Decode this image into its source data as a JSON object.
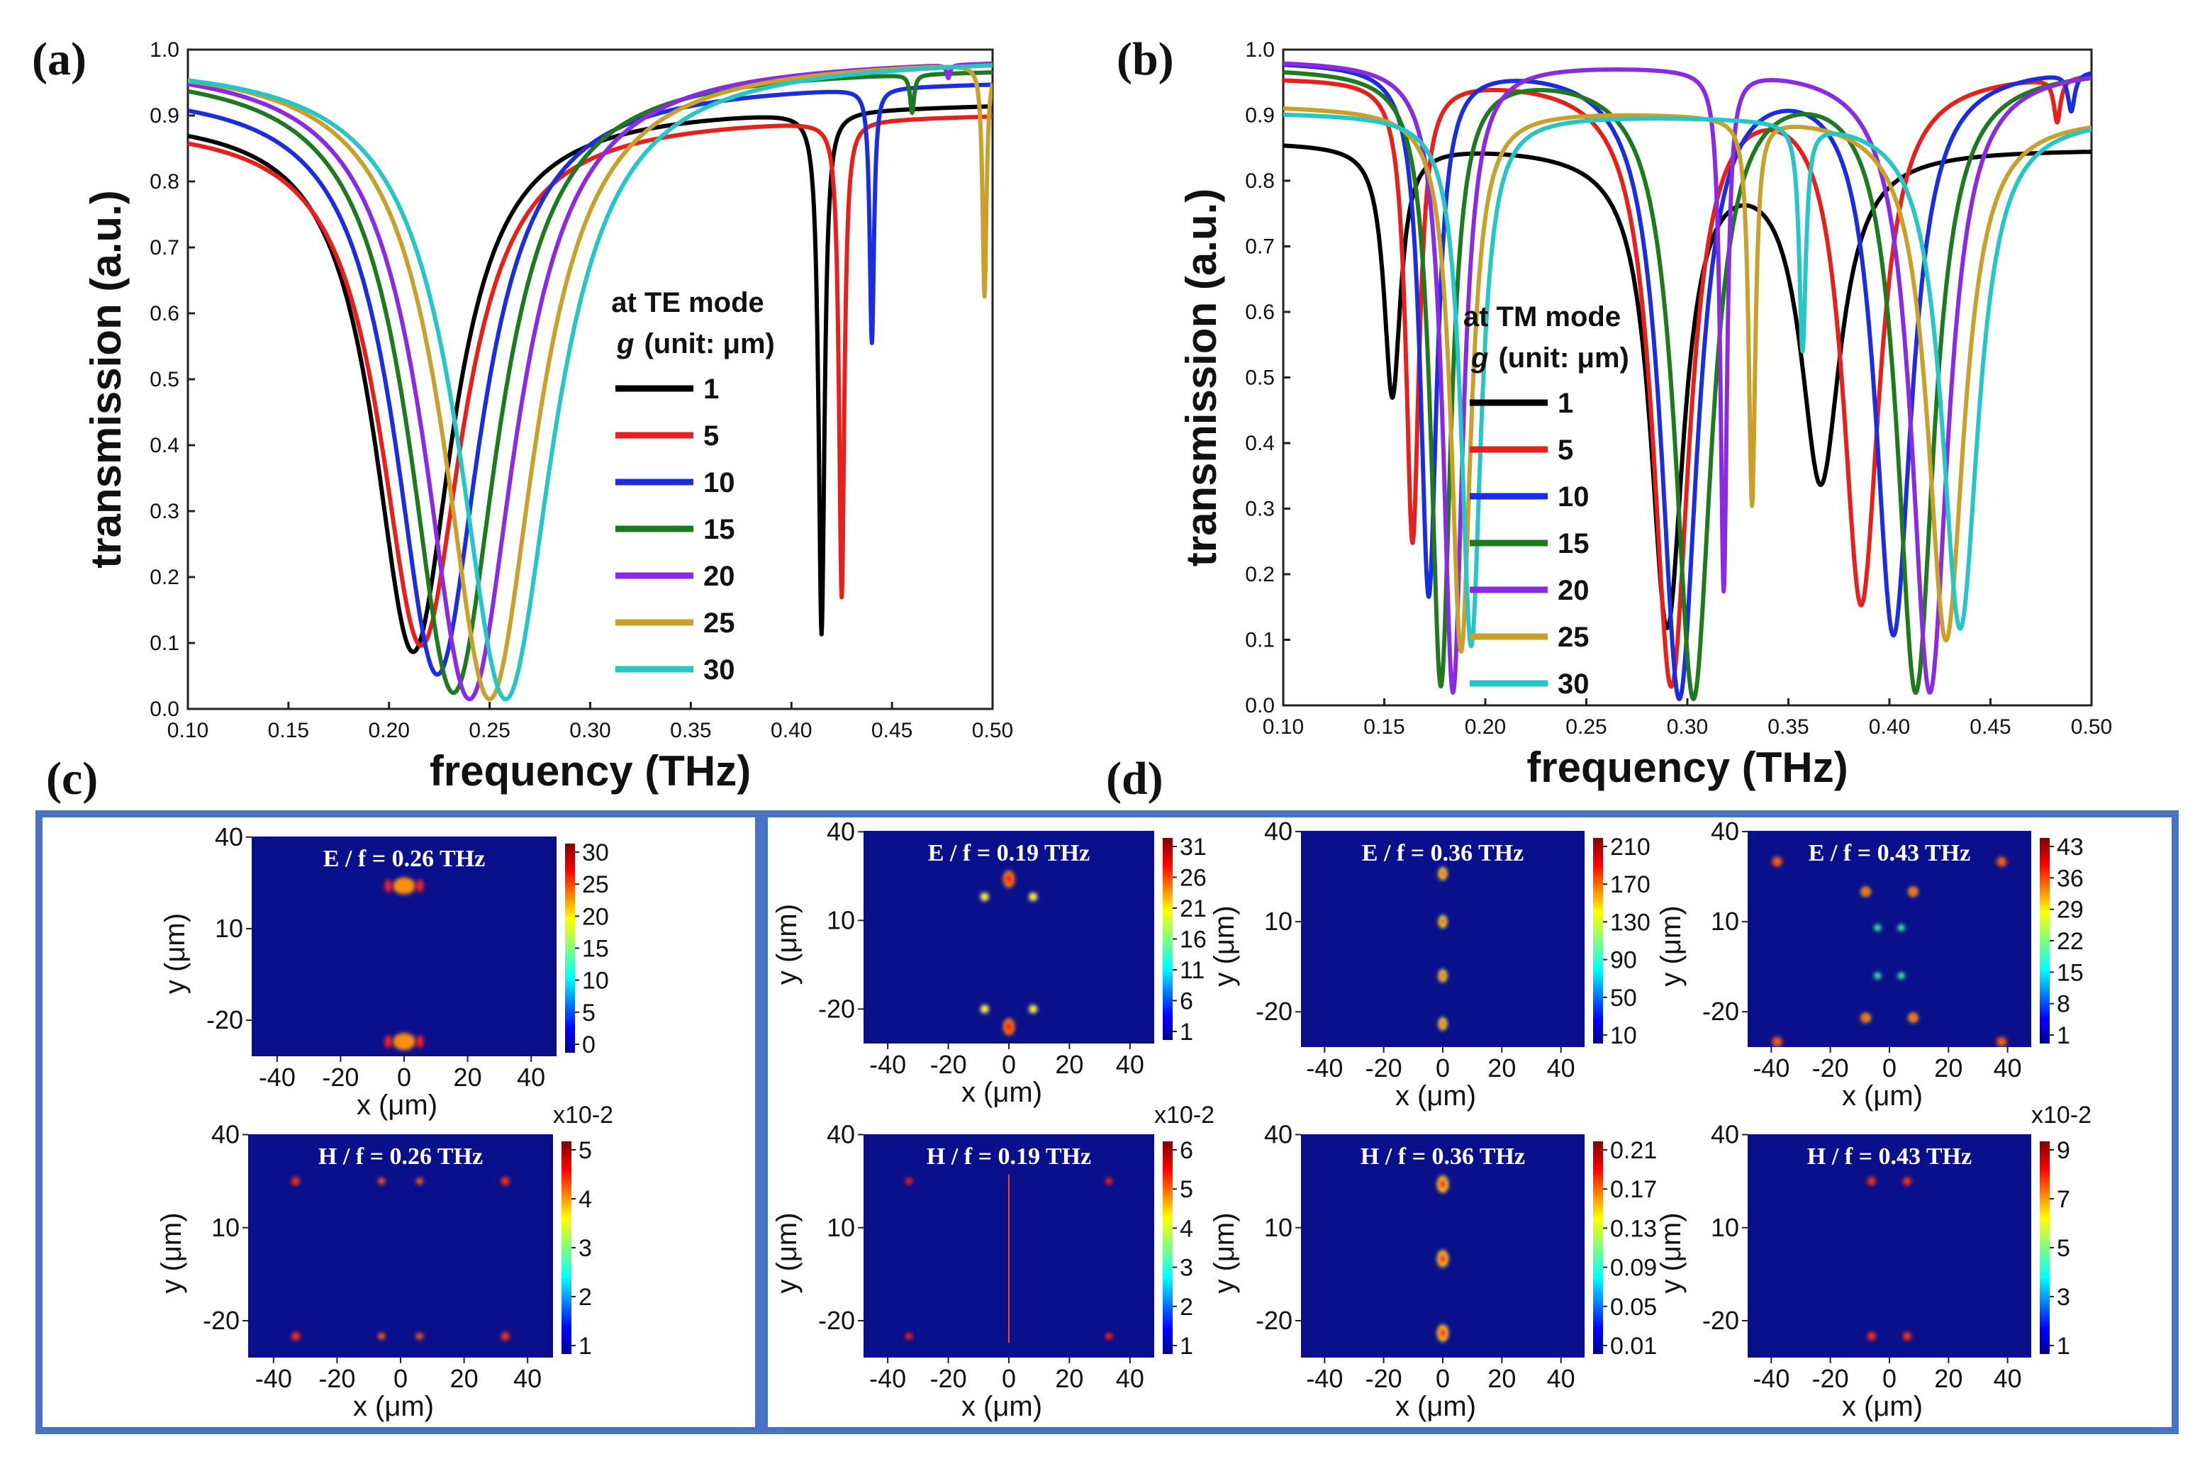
{
  "chart_data": [
    {
      "type": "line",
      "panel_label": "(a)",
      "xlabel": "frequency (THz)",
      "ylabel": "transmission (a.u.)",
      "xlim": [
        0.1,
        0.5
      ],
      "ylim": [
        0.0,
        1.0
      ],
      "x_ticks": [
        "0.10",
        "0.15",
        "0.20",
        "0.25",
        "0.30",
        "0.35",
        "0.40",
        "0.45",
        "0.50"
      ],
      "y_ticks": [
        "0.0",
        "0.1",
        "0.2",
        "0.3",
        "0.4",
        "0.5",
        "0.6",
        "0.7",
        "0.8",
        "0.9",
        "1.0"
      ],
      "legend_title_1": "at TE mode",
      "legend_title_2_var": "g",
      "legend_title_2_unit": "(unit: μm)",
      "legend_placement": "center-right",
      "series": [
        {
          "name": "1",
          "color": "#000000",
          "base_start": 0.905,
          "base_end": 0.92,
          "dips": [
            {
              "f": 0.212,
              "depth": 0.905,
              "w": 0.024
            },
            {
              "f": 0.415,
              "depth": 0.875,
              "w": 0.0018
            }
          ]
        },
        {
          "name": "5",
          "color": "#e8201c",
          "base_start": 0.893,
          "base_end": 0.905,
          "dips": [
            {
              "f": 0.216,
              "depth": 0.893,
              "w": 0.025
            },
            {
              "f": 0.425,
              "depth": 0.81,
              "w": 0.0016
            }
          ]
        },
        {
          "name": "10",
          "color": "#1a2ee0",
          "base_start": 0.945,
          "base_end": 0.955,
          "dips": [
            {
              "f": 0.224,
              "depth": 0.945,
              "w": 0.026
            },
            {
              "f": 0.44,
              "depth": 0.41,
              "w": 0.0013
            }
          ]
        },
        {
          "name": "15",
          "color": "#1f7a1f",
          "base_start": 0.975,
          "base_end": 0.975,
          "dips": [
            {
              "f": 0.232,
              "depth": 0.975,
              "w": 0.027
            },
            {
              "f": 0.46,
              "depth": 0.06,
              "w": 0.0012
            }
          ]
        },
        {
          "name": "20",
          "color": "#8a2be2",
          "base_start": 0.985,
          "base_end": 0.99,
          "dips": [
            {
              "f": 0.24,
              "depth": 0.985,
              "w": 0.028
            },
            {
              "f": 0.478,
              "depth": 0.02,
              "w": 0.001
            }
          ]
        },
        {
          "name": "25",
          "color": "#c8a02a",
          "base_start": 0.985,
          "base_end": 0.99,
          "dips": [
            {
              "f": 0.25,
              "depth": 0.985,
              "w": 0.028
            },
            {
              "f": 0.496,
              "depth": 0.36,
              "w": 0.0012
            }
          ]
        },
        {
          "name": "30",
          "color": "#26c6c6",
          "base_start": 0.985,
          "base_end": 0.99,
          "dips": [
            {
              "f": 0.258,
              "depth": 0.985,
              "w": 0.029
            }
          ]
        }
      ]
    },
    {
      "type": "line",
      "panel_label": "(b)",
      "xlabel": "frequency (THz)",
      "ylabel": "transmission (a.u.)",
      "xlim": [
        0.1,
        0.5
      ],
      "ylim": [
        0.0,
        1.0
      ],
      "x_ticks": [
        "0.10",
        "0.15",
        "0.20",
        "0.25",
        "0.30",
        "0.35",
        "0.40",
        "0.45",
        "0.50"
      ],
      "y_ticks": [
        "0.0",
        "0.1",
        "0.2",
        "0.3",
        "0.4",
        "0.5",
        "0.6",
        "0.7",
        "0.8",
        "0.9",
        "1.0"
      ],
      "legend_title_1": "at TM mode",
      "legend_title_2_var": "g",
      "legend_title_2_unit": "(unit: μm)",
      "legend_placement": "center-left",
      "series": [
        {
          "name": "1",
          "color": "#000000",
          "base_start": 0.86,
          "base_end": 0.85,
          "dips": [
            {
              "f": 0.154,
              "depth": 0.45,
              "w": 0.005
            },
            {
              "f": 0.29,
              "depth": 0.86,
              "w": 0.01
            },
            {
              "f": 0.366,
              "depth": 0.6,
              "w": 0.012
            }
          ]
        },
        {
          "name": "5",
          "color": "#e8201c",
          "base_start": 0.96,
          "base_end": 0.97,
          "dips": [
            {
              "f": 0.164,
              "depth": 0.74,
              "w": 0.004
            },
            {
              "f": 0.292,
              "depth": 0.97,
              "w": 0.011
            },
            {
              "f": 0.386,
              "depth": 0.84,
              "w": 0.011
            },
            {
              "f": 0.483,
              "depth": 0.07,
              "w": 0.002
            }
          ]
        },
        {
          "name": "10",
          "color": "#1a2ee0",
          "base_start": 0.985,
          "base_end": 0.98,
          "dips": [
            {
              "f": 0.172,
              "depth": 0.83,
              "w": 0.005
            },
            {
              "f": 0.296,
              "depth": 0.99,
              "w": 0.011
            },
            {
              "f": 0.402,
              "depth": 0.89,
              "w": 0.011
            },
            {
              "f": 0.49,
              "depth": 0.06,
              "w": 0.002
            }
          ]
        },
        {
          "name": "15",
          "color": "#1f7a1f",
          "base_start": 0.975,
          "base_end": 0.975,
          "dips": [
            {
              "f": 0.178,
              "depth": 0.97,
              "w": 0.006
            },
            {
              "f": 0.303,
              "depth": 0.99,
              "w": 0.011
            },
            {
              "f": 0.413,
              "depth": 0.98,
              "w": 0.011
            }
          ]
        },
        {
          "name": "20",
          "color": "#8a2be2",
          "base_start": 0.985,
          "base_end": 0.975,
          "dips": [
            {
              "f": 0.184,
              "depth": 0.98,
              "w": 0.006
            },
            {
              "f": 0.318,
              "depth": 0.82,
              "w": 0.002
            },
            {
              "f": 0.42,
              "depth": 0.98,
              "w": 0.011
            }
          ]
        },
        {
          "name": "25",
          "color": "#c8a02a",
          "base_start": 0.915,
          "base_end": 0.9,
          "dips": [
            {
              "f": 0.188,
              "depth": 0.91,
              "w": 0.006
            },
            {
              "f": 0.332,
              "depth": 0.66,
              "w": 0.002
            },
            {
              "f": 0.428,
              "depth": 0.89,
              "w": 0.011
            }
          ]
        },
        {
          "name": "30",
          "color": "#26c6c6",
          "base_start": 0.905,
          "base_end": 0.9,
          "dips": [
            {
              "f": 0.193,
              "depth": 0.9,
              "w": 0.006
            },
            {
              "f": 0.357,
              "depth": 0.39,
              "w": 0.002
            },
            {
              "f": 0.435,
              "depth": 0.87,
              "w": 0.011
            }
          ]
        }
      ]
    },
    {
      "type": "heatmap",
      "panel_label": "(c)",
      "maps": [
        {
          "field": "E",
          "title": "E / f = 0.26 THz",
          "pattern": "te_e",
          "colorbar_ticks": [
            "30",
            "25",
            "20",
            "15",
            "10",
            "5",
            "0"
          ],
          "colorbar_scale": ""
        },
        {
          "field": "H",
          "title": "H / f = 0.26 THz",
          "pattern": "te_h",
          "colorbar_ticks": [
            "5",
            "4",
            "3",
            "2",
            "1"
          ],
          "colorbar_scale": "x10-2"
        }
      ],
      "xlabel": "x (μm)",
      "ylabel": "y (μm)",
      "x_ticks": [
        "-40",
        "-20",
        "0",
        "20",
        "40"
      ],
      "y_ticks": [
        "40",
        "10",
        "-20"
      ]
    },
    {
      "type": "heatmap",
      "panel_label": "(d)",
      "maps": [
        {
          "field": "E",
          "title": "E / f = 0.19 THz",
          "pattern": "tm1_e",
          "colorbar_ticks": [
            "31",
            "26",
            "21",
            "16",
            "11",
            "6",
            "1"
          ],
          "colorbar_scale": ""
        },
        {
          "field": "E",
          "title": "E / f = 0.36 THz",
          "pattern": "tm2_e",
          "colorbar_ticks": [
            "210",
            "170",
            "130",
            "90",
            "50",
            "10"
          ],
          "colorbar_scale": ""
        },
        {
          "field": "E",
          "title": "E / f = 0.43 THz",
          "pattern": "tm3_e",
          "colorbar_ticks": [
            "43",
            "36",
            "29",
            "22",
            "15",
            "8",
            "1"
          ],
          "colorbar_scale": ""
        },
        {
          "field": "H",
          "title": "H / f = 0.19 THz",
          "pattern": "tm1_h",
          "colorbar_ticks": [
            "6",
            "5",
            "4",
            "3",
            "2",
            "1"
          ],
          "colorbar_scale": "x10-2"
        },
        {
          "field": "H",
          "title": "H / f = 0.36 THz",
          "pattern": "tm2_h",
          "colorbar_ticks": [
            "0.21",
            "0.17",
            "0.13",
            "0.09",
            "0.05",
            "0.01"
          ],
          "colorbar_scale": ""
        },
        {
          "field": "H",
          "title": "H / f = 0.43 THz",
          "pattern": "tm3_h",
          "colorbar_ticks": [
            "9",
            "7",
            "5",
            "3",
            "1"
          ],
          "colorbar_scale": "x10-2"
        }
      ],
      "xlabel": "x (μm)",
      "ylabel": "y (μm)",
      "x_ticks": [
        "-40",
        "-20",
        "0",
        "20",
        "40"
      ],
      "y_ticks": [
        "40",
        "10",
        "-20"
      ]
    }
  ],
  "colors": {
    "frame_border": "#4a72c4",
    "map_background": "#0a0f8c",
    "colormap": [
      "#00008f",
      "#0000ff",
      "#0080ff",
      "#00ffff",
      "#80ff80",
      "#ffff00",
      "#ff8000",
      "#ff0000",
      "#800000"
    ]
  }
}
